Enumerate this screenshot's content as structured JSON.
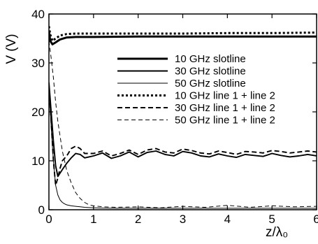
{
  "chart_data": {
    "type": "line",
    "xlabel": "z/λ₀",
    "ylabel": "V  (V)",
    "xlim": [
      0,
      6
    ],
    "ylim": [
      0,
      40
    ],
    "xticks": [
      0,
      1,
      2,
      3,
      4,
      5,
      6
    ],
    "yticks": [
      0,
      10,
      20,
      30,
      40
    ],
    "grid": false,
    "legend_position": "center-right",
    "series": [
      {
        "name": "10 GHz slotline",
        "line_style": "solid",
        "line_weight": "thick",
        "x": [
          0,
          0.03,
          0.08,
          0.15,
          0.25,
          0.4,
          0.6,
          1,
          2,
          3,
          4,
          5,
          6
        ],
        "y": [
          36.5,
          34.5,
          33.8,
          34.2,
          34.8,
          35.2,
          35.3,
          35.3,
          35.4,
          35.4,
          35.4,
          35.4,
          35.4
        ]
      },
      {
        "name": "30 GHz slotline",
        "line_style": "solid",
        "line_weight": "medium",
        "x": [
          0,
          0.05,
          0.1,
          0.15,
          0.2,
          0.25,
          0.3,
          0.4,
          0.5,
          0.6,
          0.7,
          0.8,
          0.9,
          1.0,
          1.2,
          1.4,
          1.6,
          1.8,
          2.0,
          2.2,
          2.4,
          2.6,
          2.8,
          3.0,
          3.2,
          3.4,
          3.6,
          3.8,
          4.0,
          4.2,
          4.4,
          4.6,
          4.8,
          5.0,
          5.2,
          5.4,
          5.6,
          5.8,
          6.0
        ],
        "y": [
          26,
          20,
          14,
          9,
          6.8,
          7.5,
          8.2,
          9.5,
          10.6,
          11.5,
          11.3,
          10.6,
          10.8,
          11.0,
          11.6,
          10.5,
          11.0,
          11.8,
          10.8,
          11.7,
          12.0,
          11.3,
          11.0,
          11.9,
          11.6,
          11.0,
          10.8,
          11.4,
          11.0,
          10.7,
          11.3,
          11.1,
          10.9,
          11.5,
          11.1,
          10.8,
          11.0,
          11.3,
          11.0
        ]
      },
      {
        "name": "50 GHz slotline",
        "line_style": "solid",
        "line_weight": "thin",
        "x": [
          0,
          0.05,
          0.1,
          0.15,
          0.2,
          0.25,
          0.3,
          0.35,
          0.4,
          0.5,
          0.6,
          0.7,
          0.8,
          0.9,
          1.0,
          1.2,
          1.5,
          2.0,
          3.0,
          4.0,
          5.0,
          6.0
        ],
        "y": [
          25,
          17,
          10,
          5,
          3,
          2,
          1.5,
          1.2,
          1.0,
          0.8,
          0.7,
          0.6,
          0.5,
          0.45,
          0.4,
          0.35,
          0.3,
          0.3,
          0.3,
          0.3,
          0.3,
          0.3
        ]
      },
      {
        "name": "10 GHz line 1 + line 2",
        "line_style": "dotted",
        "line_weight": "thick",
        "x": [
          0,
          0.03,
          0.08,
          0.15,
          0.25,
          0.4,
          0.6,
          1,
          2,
          3,
          4,
          5,
          6
        ],
        "y": [
          37.5,
          35.8,
          34.5,
          35.0,
          35.6,
          35.9,
          36.0,
          36.0,
          36.0,
          36.0,
          36.1,
          36.1,
          36.2
        ]
      },
      {
        "name": "30 GHz line 1 + line 2",
        "line_style": "dashed",
        "line_weight": "medium",
        "x": [
          0,
          0.05,
          0.1,
          0.15,
          0.2,
          0.25,
          0.3,
          0.4,
          0.5,
          0.6,
          0.7,
          0.8,
          0.9,
          1.0,
          1.2,
          1.4,
          1.6,
          1.8,
          2.0,
          2.2,
          2.4,
          2.6,
          2.8,
          3.0,
          3.2,
          3.4,
          3.6,
          3.8,
          4.0,
          4.2,
          4.4,
          4.6,
          4.8,
          5.0,
          5.2,
          5.4,
          5.6,
          5.8,
          6.0
        ],
        "y": [
          25,
          18,
          10,
          5,
          6.5,
          8.5,
          10,
          11,
          12.5,
          13.0,
          12.5,
          11.5,
          11.5,
          11.5,
          12.0,
          11.0,
          11.5,
          12.2,
          11.3,
          12.2,
          12.5,
          11.8,
          11.6,
          12.4,
          12.1,
          11.6,
          11.4,
          12.0,
          11.7,
          11.3,
          11.9,
          11.8,
          11.6,
          12.1,
          11.9,
          11.6,
          11.8,
          12.0,
          11.8
        ]
      },
      {
        "name": "50 GHz line 1 + line 2",
        "line_style": "dashed",
        "line_weight": "thin",
        "x": [
          0,
          0.05,
          0.1,
          0.15,
          0.2,
          0.3,
          0.4,
          0.5,
          0.6,
          0.7,
          0.8,
          0.9,
          1.0,
          1.2,
          1.5,
          2.0,
          2.5,
          3.0,
          3.5,
          4.0,
          4.5,
          5.0,
          5.5,
          6.0
        ],
        "y": [
          34.5,
          31,
          27,
          22,
          18,
          12,
          8,
          5.5,
          3.5,
          2.3,
          1.5,
          1.0,
          0.8,
          0.6,
          0.5,
          0.6,
          0.4,
          0.7,
          0.5,
          0.9,
          0.5,
          0.8,
          0.6,
          0.7
        ]
      }
    ]
  }
}
